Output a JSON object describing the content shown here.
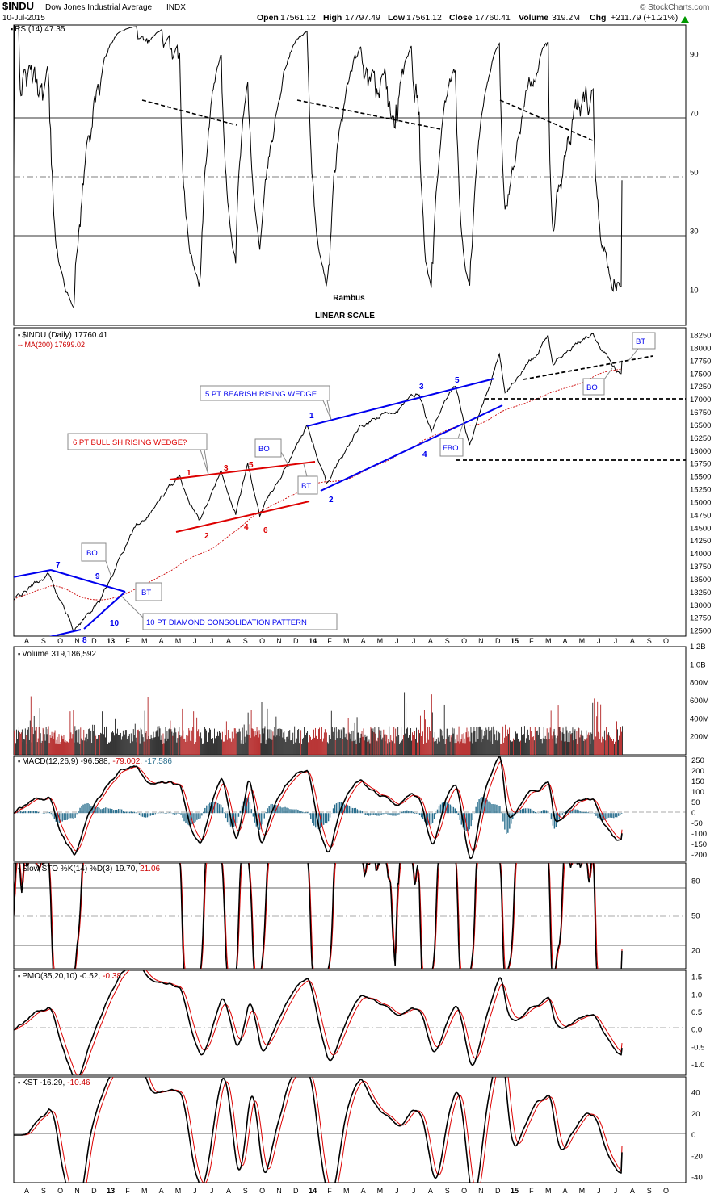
{
  "header": {
    "symbol": "$INDU",
    "name": "Dow Jones Industrial Average",
    "exchange": "INDX",
    "date": "10-Jul-2015",
    "open_label": "Open",
    "open": "17561.12",
    "high_label": "High",
    "high": "17797.49",
    "low_label": "Low",
    "low": "17561.12",
    "close_label": "Close",
    "close": "17760.41",
    "volume_label": "Volume",
    "volume": "319.2M",
    "chg_label": "Chg",
    "chg": "+211.79 (+1.21%)",
    "watermark": "© StockCharts.com"
  },
  "colors": {
    "price": "#000000",
    "ma": "#cc0000",
    "blue": "#0000ee",
    "red": "#dd0000",
    "hist": "#2a6f8e",
    "volUp": "#222222",
    "volDown": "#b22222",
    "grid": "#000000"
  },
  "icons": [
    "up-arrow-icon"
  ],
  "months_top": [
    "A",
    "S",
    "O",
    "N",
    "D",
    "13",
    "F",
    "M",
    "A",
    "M",
    "J",
    "J",
    "A",
    "S",
    "O",
    "N",
    "D",
    "14",
    "F",
    "M",
    "A",
    "M",
    "J",
    "J",
    "A",
    "S",
    "O",
    "N",
    "D",
    "15",
    "F",
    "M",
    "A",
    "M",
    "J",
    "J",
    "A",
    "S",
    "O"
  ],
  "months_bottom": [
    "A",
    "S",
    "O",
    "N",
    "D",
    "13",
    "F",
    "M",
    "A",
    "M",
    "J",
    "J",
    "A",
    "S",
    "O",
    "N",
    "D",
    "14",
    "F",
    "M",
    "A",
    "M",
    "J",
    "J",
    "A",
    "S",
    "O",
    "N",
    "D",
    "15",
    "F",
    "M",
    "A",
    "M",
    "J",
    "J",
    "A",
    "S",
    "O"
  ],
  "rsi": {
    "legend": "RSI(14) 47.35",
    "ticks": [
      "90",
      "70",
      "50",
      "30",
      "10"
    ],
    "center_text_1": "Rambus",
    "center_text_2": "LINEAR SCALE"
  },
  "price_panel": {
    "legend": "$INDU (Daily) 17760.41",
    "ma_legend": "MA(200) 17699.02",
    "ticks": [
      "18250",
      "18000",
      "17750",
      "17500",
      "17250",
      "17000",
      "16750",
      "16500",
      "16250",
      "16000",
      "15750",
      "15500",
      "15250",
      "15000",
      "14750",
      "14500",
      "14250",
      "14000",
      "13750",
      "13500",
      "13250",
      "13000",
      "12750",
      "12500"
    ],
    "annotations": {
      "bearish_wedge": "5 PT BEARISH RISING WEDGE",
      "bullish_wedge": "6 PT BULLISH RISING WEDGE?",
      "diamond": "10 PT DIAMOND CONSOLIDATION PATTERN",
      "bo": "BO",
      "bt": "BT",
      "fbo": "FBO"
    },
    "points_red": [
      "1",
      "2",
      "3",
      "4",
      "5",
      "6"
    ],
    "points_blue": [
      "1",
      "2",
      "3",
      "4",
      "5"
    ],
    "points_diamond": [
      "7",
      "8",
      "9",
      "10"
    ]
  },
  "volume": {
    "legend": "Volume 319,186,592",
    "ticks": [
      "1.2B",
      "1.0B",
      "800M",
      "600M",
      "400M",
      "200M"
    ]
  },
  "macd": {
    "legend_label": "MACD(12,26,9)",
    "legend_v1": "-96.588,",
    "legend_v2": "-79.002,",
    "legend_v3": "-17.586",
    "ticks": [
      "250",
      "200",
      "150",
      "100",
      "50",
      "0",
      "-50",
      "-100",
      "-150",
      "-200"
    ]
  },
  "sto": {
    "legend_label": "Slow STO %K(14) %D(3)",
    "legend_v1": "19.70,",
    "legend_v2": "21.06",
    "ticks": [
      "80",
      "50",
      "20"
    ]
  },
  "pmo": {
    "legend_label": "PMO(35,20,10)",
    "legend_v1": "-0.52,",
    "legend_v2": "-0.38",
    "ticks": [
      "1.5",
      "1.0",
      "0.5",
      "0.0",
      "-0.5",
      "-1.0"
    ]
  },
  "kst": {
    "legend_label": "KST",
    "legend_v1": "-16.29,",
    "legend_v2": "-10.46",
    "ticks": [
      "40",
      "20",
      "0",
      "-20",
      "-40"
    ]
  },
  "chart_data": {
    "type": "line",
    "title": "$INDU Dow Jones Industrial Average INDX",
    "x_range": [
      "2012-08",
      "2015-07-10"
    ],
    "price_anchors": {
      "x": [
        "2012-08",
        "2012-10",
        "2012-11-15",
        "2012-12-31",
        "2013-03",
        "2013-05-20",
        "2013-06-24",
        "2013-08-02",
        "2013-08-28",
        "2013-09-18",
        "2013-10-09",
        "2013-12-31",
        "2014-02-03",
        "2014-04",
        "2014-07-17",
        "2014-08-07",
        "2014-09-19",
        "2014-10-15",
        "2014-12-05",
        "2014-12-16",
        "2015-03-02",
        "2015-03-10",
        "2015-05-19",
        "2015-07-08",
        "2015-07-10"
      ],
      "close": [
        13100,
        13600,
        12550,
        13100,
        14500,
        15500,
        14700,
        15600,
        14800,
        15700,
        14750,
        16500,
        15350,
        16400,
        17100,
        16350,
        17250,
        16100,
        17900,
        17100,
        18250,
        17700,
        18300,
        17500,
        17760
      ]
    },
    "ma200_last": 17699.02,
    "rsi14_last": 47.35,
    "rsi_levels": [
      30,
      50,
      70
    ],
    "volume_last": 319186592,
    "macd_last": [
      -96.588,
      -79.002,
      -17.586
    ],
    "sto_last": [
      19.7,
      21.06
    ],
    "pmo_last": [
      -0.52,
      -0.38
    ],
    "kst_last": [
      -16.29,
      -10.46
    ],
    "ylim_price": [
      12400,
      18400
    ],
    "ylim_rsi": [
      0,
      100
    ],
    "ylim_volume": [
      0,
      1200000000
    ],
    "ylim_macd": [
      -230,
      270
    ],
    "ylim_sto": [
      0,
      100
    ],
    "ylim_pmo": [
      -1.3,
      1.7
    ],
    "ylim_kst": [
      -45,
      55
    ]
  }
}
